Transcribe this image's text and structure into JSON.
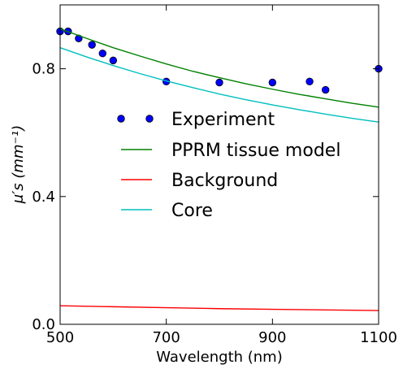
{
  "chart_data": {
    "type": "line",
    "xlabel": "Wavelength (nm)",
    "ylabel": "μ′s (mm⁻¹)",
    "xlim": [
      500,
      1100
    ],
    "ylim": [
      0.0,
      1.0
    ],
    "xticks": [
      500,
      700,
      900,
      1100
    ],
    "xtick_labels": [
      "500",
      "700",
      "900",
      "1100"
    ],
    "yticks": [
      0.0,
      0.4,
      0.8
    ],
    "ytick_labels": [
      "0.0",
      "0.4",
      "0.8"
    ],
    "grid": false,
    "legend_position": "center",
    "series": [
      {
        "name": "Experiment",
        "kind": "scatter",
        "color": "#0000ff",
        "x": [
          500,
          515,
          535,
          560,
          580,
          600,
          700,
          800,
          900,
          970,
          1000,
          1100
        ],
        "y": [
          0.917,
          0.917,
          0.895,
          0.875,
          0.848,
          0.826,
          0.76,
          0.757,
          0.757,
          0.76,
          0.734,
          0.8
        ]
      },
      {
        "name": "PPRM tissue model",
        "kind": "line",
        "color": "#008000",
        "x": [
          500,
          550,
          600,
          650,
          700,
          750,
          800,
          850,
          900,
          950,
          1000,
          1050,
          1100
        ],
        "y": [
          0.925,
          0.895,
          0.866,
          0.84,
          0.815,
          0.792,
          0.772,
          0.753,
          0.736,
          0.72,
          0.706,
          0.692,
          0.68
        ]
      },
      {
        "name": "Background",
        "kind": "line",
        "color": "#ff0000",
        "x": [
          500,
          600,
          700,
          800,
          900,
          1000,
          1100
        ],
        "y": [
          0.058,
          0.055,
          0.052,
          0.049,
          0.047,
          0.045,
          0.043
        ]
      },
      {
        "name": "Core",
        "kind": "line",
        "color": "#00bfbf",
        "x": [
          500,
          550,
          600,
          650,
          700,
          750,
          800,
          850,
          900,
          950,
          1000,
          1050,
          1100
        ],
        "y": [
          0.866,
          0.837,
          0.81,
          0.785,
          0.762,
          0.741,
          0.721,
          0.703,
          0.687,
          0.672,
          0.658,
          0.645,
          0.633
        ]
      }
    ]
  }
}
